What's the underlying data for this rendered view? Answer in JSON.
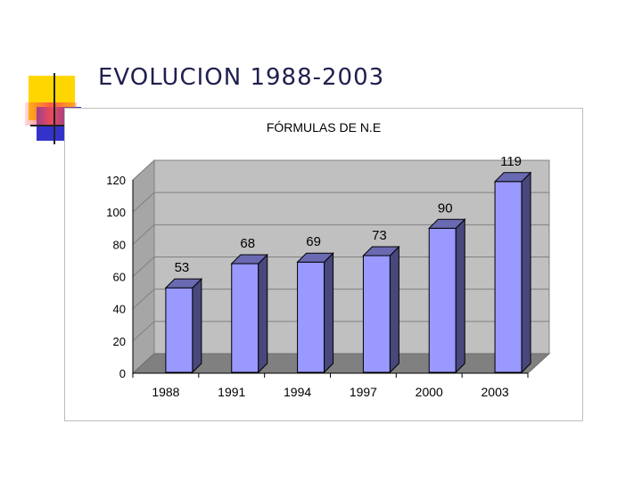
{
  "slide": {
    "title": "EVOLUCION 1988-2003"
  },
  "colors": {
    "bar_front": "#9999ff",
    "bar_side": "#48487c",
    "bar_top": "#6a6ab3",
    "wall": "#c0c0c0",
    "floor": "#808080",
    "deco_yellow": "#ffd600",
    "deco_red": "#ff4d4d",
    "deco_blue": "#3333cc"
  },
  "chart_data": {
    "type": "bar",
    "title": "FÓRMULAS DE N.E",
    "categories": [
      "1988",
      "1991",
      "1994",
      "1997",
      "2000",
      "2003"
    ],
    "values": [
      53,
      68,
      69,
      73,
      90,
      119
    ],
    "data_labels": [
      "53",
      "68",
      "69",
      "73",
      "90",
      "119"
    ],
    "ylim": [
      0,
      120
    ],
    "yticks": [
      "0",
      "20",
      "40",
      "60",
      "80",
      "100",
      "120"
    ],
    "grid": true,
    "legend": "none",
    "style": "3d"
  }
}
